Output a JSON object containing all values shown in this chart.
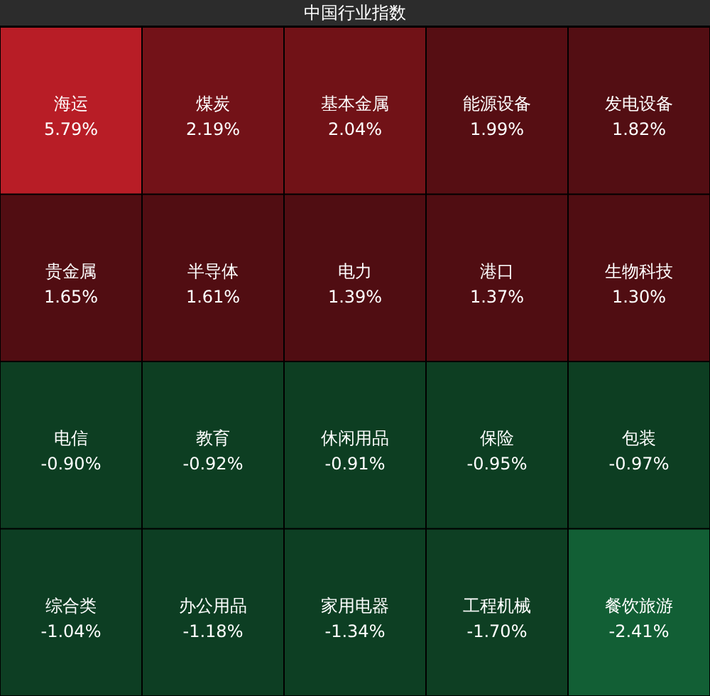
{
  "chart_data": {
    "type": "other",
    "title": "中国行业指数",
    "categories": [
      "海运",
      "煤炭",
      "基本金属",
      "能源设备",
      "发电设备",
      "贵金属",
      "半导体",
      "电力",
      "港口",
      "生物科技",
      "电信",
      "教育",
      "休闲用品",
      "保险",
      "包装",
      "综合类",
      "办公用品",
      "家用电器",
      "工程机械",
      "餐饮旅游"
    ],
    "values": [
      5.79,
      2.19,
      2.04,
      1.99,
      1.82,
      1.65,
      1.61,
      1.39,
      1.37,
      1.3,
      -0.9,
      -0.92,
      -0.91,
      -0.95,
      -0.97,
      -1.04,
      -1.18,
      -1.34,
      -1.7,
      -2.41
    ],
    "value_labels": [
      "5.79%",
      "2.19%",
      "2.04%",
      "1.99%",
      "1.82%",
      "1.65%",
      "1.61%",
      "1.39%",
      "1.37%",
      "1.30%",
      "-0.90%",
      "-0.92%",
      "-0.91%",
      "-0.95%",
      "-0.97%",
      "-1.04%",
      "-1.18%",
      "-1.34%",
      "-1.70%",
      "-2.41%"
    ],
    "colors": [
      "#b81d26",
      "#7e141a",
      "#7c1419",
      "#5e0f15",
      "#5c0f15",
      "#5a0f14",
      "#5a0f14",
      "#5a0f14",
      "#5a0f14",
      "#5a0f14",
      "#0f4627",
      "#0f4627",
      "#0f4627",
      "#0f4627",
      "#0f4627",
      "#0f4627",
      "#0f4627",
      "#0f4627",
      "#0f4627",
      "#14683a"
    ]
  }
}
